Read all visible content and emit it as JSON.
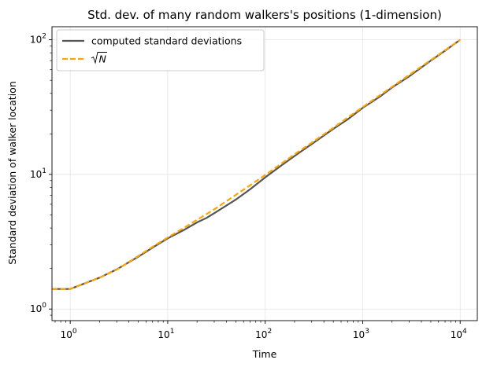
{
  "chart_data": {
    "type": "line",
    "title": "Std. dev. of many random walkers's positions (1-dimension)",
    "xlabel": "Time",
    "ylabel": "Standard deviation of walker location",
    "xscale": "log",
    "yscale": "log",
    "xlim": [
      0.65,
      15000
    ],
    "ylim": [
      0.82,
      125
    ],
    "grid": true,
    "legend_position": "upper-left",
    "x_ticks": [
      {
        "base": "10",
        "exp": "0",
        "value": 1
      },
      {
        "base": "10",
        "exp": "1",
        "value": 10
      },
      {
        "base": "10",
        "exp": "2",
        "value": 100
      },
      {
        "base": "10",
        "exp": "3",
        "value": 1000
      },
      {
        "base": "10",
        "exp": "4",
        "value": 10000
      }
    ],
    "y_ticks": [
      {
        "base": "10",
        "exp": "0",
        "value": 1
      },
      {
        "base": "10",
        "exp": "1",
        "value": 10
      },
      {
        "base": "10",
        "exp": "2",
        "value": 100
      }
    ],
    "series": [
      {
        "name": "computed standard deviations",
        "color": "#555555",
        "style": "solid",
        "x": [
          0.65,
          1,
          2,
          3,
          5,
          7,
          10,
          15,
          20,
          25,
          30,
          50,
          70,
          100,
          150,
          200,
          300,
          500,
          700,
          1000,
          1500,
          2000,
          3000,
          5000,
          7000,
          10000
        ],
        "y": [
          1.41,
          1.41,
          1.71,
          1.97,
          2.45,
          2.86,
          3.35,
          3.9,
          4.4,
          4.75,
          5.15,
          6.5,
          7.75,
          9.5,
          11.8,
          13.7,
          16.8,
          21.8,
          25.6,
          31.2,
          37.8,
          44.2,
          53.5,
          70,
          83,
          100
        ]
      },
      {
        "name": "√N",
        "legend_label_base": "N",
        "color": "#ffa500",
        "style": "dashed",
        "x": [
          0.65,
          1,
          2,
          3,
          5,
          7,
          10,
          15,
          20,
          30,
          50,
          70,
          100,
          200,
          300,
          500,
          700,
          1000,
          2000,
          3000,
          5000,
          7000,
          10000
        ],
        "y": [
          1.41,
          1.41,
          1.71,
          1.96,
          2.48,
          2.9,
          3.4,
          4.05,
          4.6,
          5.5,
          7.05,
          8.3,
          9.9,
          14.1,
          17.2,
          22.2,
          26.4,
          31.6,
          44.7,
          54.8,
          70.7,
          83.7,
          100
        ]
      }
    ]
  }
}
